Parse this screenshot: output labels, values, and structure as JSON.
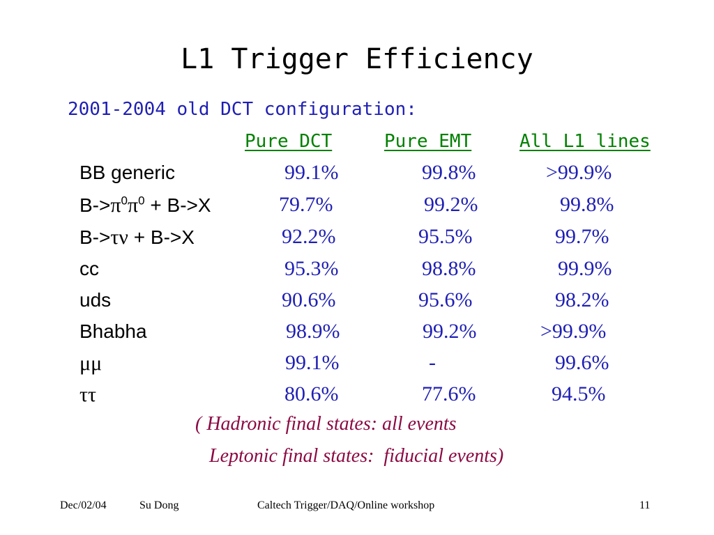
{
  "title": "L1 Trigger Efficiency",
  "subtitle": "2001-2004 old DCT configuration:",
  "columns": [
    "Pure DCT",
    "Pure EMT",
    "All L1 lines"
  ],
  "rows": [
    {
      "label": "BB generic",
      "values": [
        "99.1%",
        "99.8%",
        ">99.9%"
      ]
    },
    {
      "label_parts": [
        "B->",
        "π",
        "0",
        "π",
        "0",
        " + B->X"
      ],
      "values": [
        "79.7%",
        "99.2%",
        "99.8%"
      ]
    },
    {
      "label_parts": [
        "B->",
        "τν",
        " + B->X"
      ],
      "values": [
        "92.2%",
        "95.5%",
        "99.7%"
      ]
    },
    {
      "label": "cc",
      "values": [
        "95.3%",
        "98.8%",
        "99.9%"
      ]
    },
    {
      "label": "uds",
      "values": [
        "90.6%",
        "95.6%",
        "98.2%"
      ]
    },
    {
      "label": "Bhabha",
      "values": [
        "98.9%",
        "99.2%",
        ">99.9%"
      ]
    },
    {
      "label": "μμ",
      "values": [
        "99.1%",
        "-",
        "99.6%"
      ]
    },
    {
      "label": "ττ",
      "values": [
        "80.6%",
        "77.6%",
        "94.5%"
      ]
    }
  ],
  "notes": {
    "line1": "( Hadronic final states: all events",
    "line2": "Leptonic final states:  fiducial events)"
  },
  "footer": {
    "date": "Dec/02/04",
    "author": "Su Dong",
    "event": "Caltech Trigger/DAQ/Online workshop",
    "page": "11"
  },
  "colors": {
    "title": "#000000",
    "subtitle": "#1f1fb4",
    "column_headers": "#008000",
    "values": "#1f1fb4",
    "notes": "#8b0a43"
  }
}
